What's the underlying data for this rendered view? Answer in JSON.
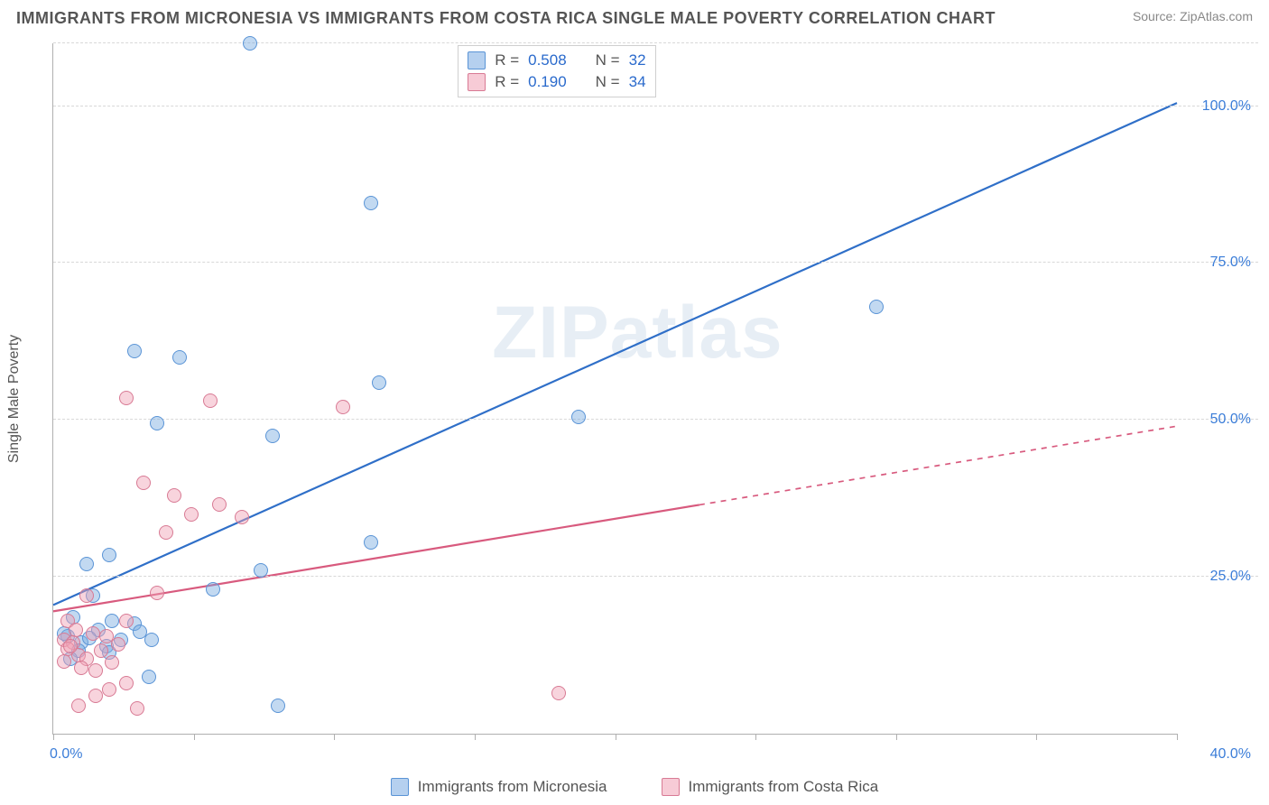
{
  "header": {
    "title": "IMMIGRANTS FROM MICRONESIA VS IMMIGRANTS FROM COSTA RICA SINGLE MALE POVERTY CORRELATION CHART",
    "source": "Source: ZipAtlas.com"
  },
  "ylabel": "Single Male Poverty",
  "watermark": "ZIPatlas",
  "chart": {
    "type": "scatter",
    "xlim": [
      0,
      40
    ],
    "ylim": [
      0,
      110
    ],
    "xtick_positions": [
      0,
      5,
      10,
      15,
      20,
      25,
      30,
      35,
      40
    ],
    "xtick_labels_show": {
      "0": "0.0%",
      "40": "40.0%"
    },
    "ygrid_positions": [
      25,
      50,
      75,
      100,
      110
    ],
    "ytick_labels": {
      "25": "25.0%",
      "50": "50.0%",
      "75": "75.0%",
      "100": "100.0%"
    },
    "background_color": "#ffffff",
    "grid_color": "#d8d8d8",
    "axis_color": "#b0b0b0",
    "tick_label_color": "#3b7dd8",
    "marker_size": 16,
    "marker_stroke_width": 1.2,
    "line_width": 2.2,
    "series": [
      {
        "id": "micronesia",
        "label": "Immigrants from Micronesia",
        "fill": "rgba(120,170,225,0.45)",
        "stroke": "#5a94d6",
        "line_color": "#2f6fc8",
        "trend": {
          "x0": 0,
          "y0": 20.5,
          "x1": 40,
          "y1": 100.5,
          "solid_until_x": 40
        },
        "R": "0.508",
        "N": "32",
        "points": [
          [
            7.0,
            110.0
          ],
          [
            11.3,
            84.5
          ],
          [
            29.3,
            68.0
          ],
          [
            2.9,
            61.0
          ],
          [
            4.5,
            60.0
          ],
          [
            11.6,
            56.0
          ],
          [
            18.7,
            50.5
          ],
          [
            3.7,
            49.5
          ],
          [
            7.8,
            47.5
          ],
          [
            11.3,
            30.5
          ],
          [
            2.0,
            28.5
          ],
          [
            1.2,
            27.0
          ],
          [
            7.4,
            26.0
          ],
          [
            5.7,
            23.0
          ],
          [
            1.4,
            22.0
          ],
          [
            0.7,
            18.5
          ],
          [
            2.1,
            18.0
          ],
          [
            2.9,
            17.5
          ],
          [
            1.6,
            16.5
          ],
          [
            3.1,
            16.2
          ],
          [
            0.5,
            15.5
          ],
          [
            2.4,
            15.0
          ],
          [
            3.5,
            15.0
          ],
          [
            1.0,
            14.5
          ],
          [
            1.9,
            14.0
          ],
          [
            0.9,
            13.2
          ],
          [
            2.0,
            13.0
          ],
          [
            0.6,
            12.0
          ],
          [
            3.4,
            9.0
          ],
          [
            8.0,
            4.5
          ],
          [
            0.4,
            15.9
          ],
          [
            1.3,
            15.2
          ]
        ]
      },
      {
        "id": "costarica",
        "label": "Immigrants from Costa Rica",
        "fill": "rgba(240,160,180,0.45)",
        "stroke": "#d87a94",
        "line_color": "#d85a7e",
        "trend": {
          "x0": 0,
          "y0": 19.5,
          "x1": 40,
          "y1": 49.0,
          "solid_until_x": 23
        },
        "R": "0.190",
        "N": "34",
        "points": [
          [
            2.6,
            53.5
          ],
          [
            5.6,
            53.0
          ],
          [
            10.3,
            52.0
          ],
          [
            3.2,
            40.0
          ],
          [
            4.3,
            38.0
          ],
          [
            5.9,
            36.5
          ],
          [
            4.9,
            35.0
          ],
          [
            6.7,
            34.5
          ],
          [
            4.0,
            32.0
          ],
          [
            1.2,
            22.0
          ],
          [
            3.7,
            22.5
          ],
          [
            0.5,
            18.0
          ],
          [
            2.6,
            18.0
          ],
          [
            0.8,
            16.5
          ],
          [
            1.4,
            16.0
          ],
          [
            0.4,
            15.0
          ],
          [
            1.9,
            15.5
          ],
          [
            0.7,
            14.5
          ],
          [
            2.3,
            14.3
          ],
          [
            0.5,
            13.5
          ],
          [
            1.7,
            13.2
          ],
          [
            0.9,
            12.5
          ],
          [
            1.2,
            12.0
          ],
          [
            0.4,
            11.5
          ],
          [
            2.1,
            11.3
          ],
          [
            1.0,
            10.5
          ],
          [
            2.6,
            8.0
          ],
          [
            2.0,
            7.0
          ],
          [
            1.5,
            6.0
          ],
          [
            3.0,
            4.0
          ],
          [
            0.9,
            4.5
          ],
          [
            18.0,
            6.5
          ],
          [
            0.6,
            14.0
          ],
          [
            1.5,
            10.0
          ]
        ]
      }
    ]
  },
  "stats_box": {
    "rows": [
      {
        "swatch_fill": "rgba(120,170,225,0.55)",
        "swatch_stroke": "#5a94d6",
        "r_label": "R =",
        "r_val": "0.508",
        "n_label": "N =",
        "n_val": "32"
      },
      {
        "swatch_fill": "rgba(240,160,180,0.55)",
        "swatch_stroke": "#d87a94",
        "r_label": "R =",
        "r_val": "0.190",
        "n_label": "N =",
        "n_val": "34"
      }
    ]
  },
  "legend": {
    "items": [
      {
        "swatch_fill": "rgba(120,170,225,0.55)",
        "swatch_stroke": "#5a94d6",
        "label": "Immigrants from Micronesia"
      },
      {
        "swatch_fill": "rgba(240,160,180,0.55)",
        "swatch_stroke": "#d87a94",
        "label": "Immigrants from Costa Rica"
      }
    ]
  }
}
